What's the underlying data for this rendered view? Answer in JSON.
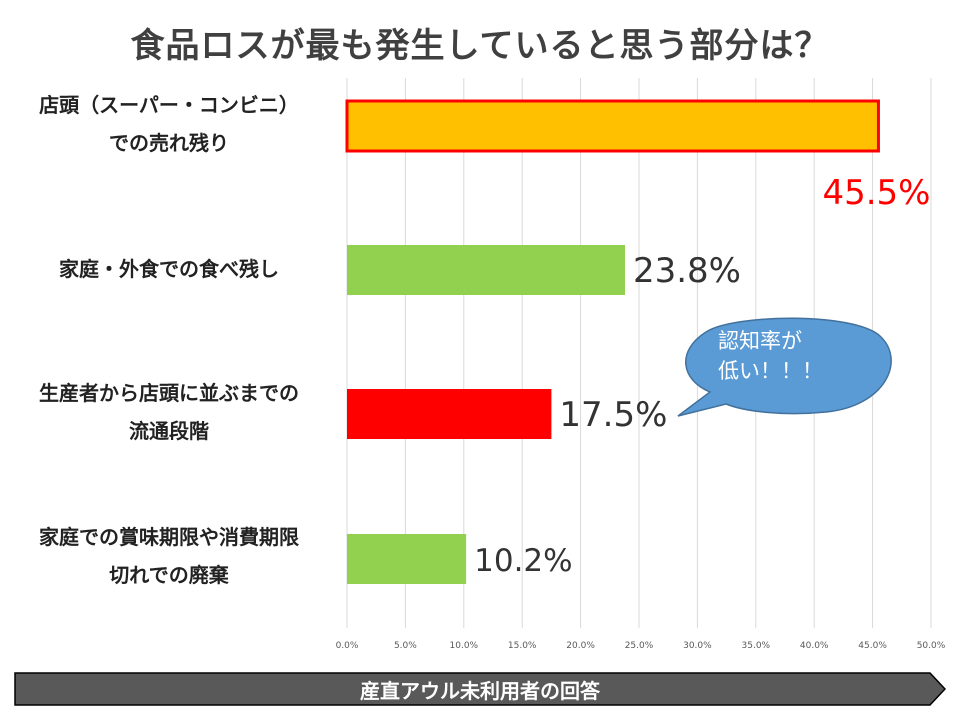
{
  "title": "食品ロスが最も発生していると思う部分は？",
  "chart_data": {
    "type": "bar",
    "orientation": "horizontal",
    "categories": [
      "店頭（スーパー・コンビニ）\nでの売れ残り",
      "家庭・外食での食べ残し",
      "生産者から店頭に並ぶまでの\n流通段階",
      "家庭での賞味期限や消費期限\n切れでの廃棄"
    ],
    "values": [
      45.5,
      23.8,
      17.5,
      10.2
    ],
    "value_labels": [
      "45.5%",
      "23.8%",
      "17.5%",
      "10.2%"
    ],
    "bar_colors": [
      "#FFC000",
      "#92D050",
      "#FF0000",
      "#92D050"
    ],
    "highlight_border_color": "#FF0000",
    "highlight_label_color": "#FF0000",
    "xlim": [
      0,
      50
    ],
    "x_ticks": [
      "0.0%",
      "5.0%",
      "10.0%",
      "15.0%",
      "20.0%",
      "25.0%",
      "30.0%",
      "35.0%",
      "40.0%",
      "45.0%",
      "50.0%"
    ],
    "grid": true
  },
  "callout": {
    "text": "認知率が\n低い！！！",
    "fill": "#5B9BD5",
    "stroke": "#41719C"
  },
  "footer": {
    "text": "産直アウル未利用者の回答",
    "fill": "#595959"
  }
}
